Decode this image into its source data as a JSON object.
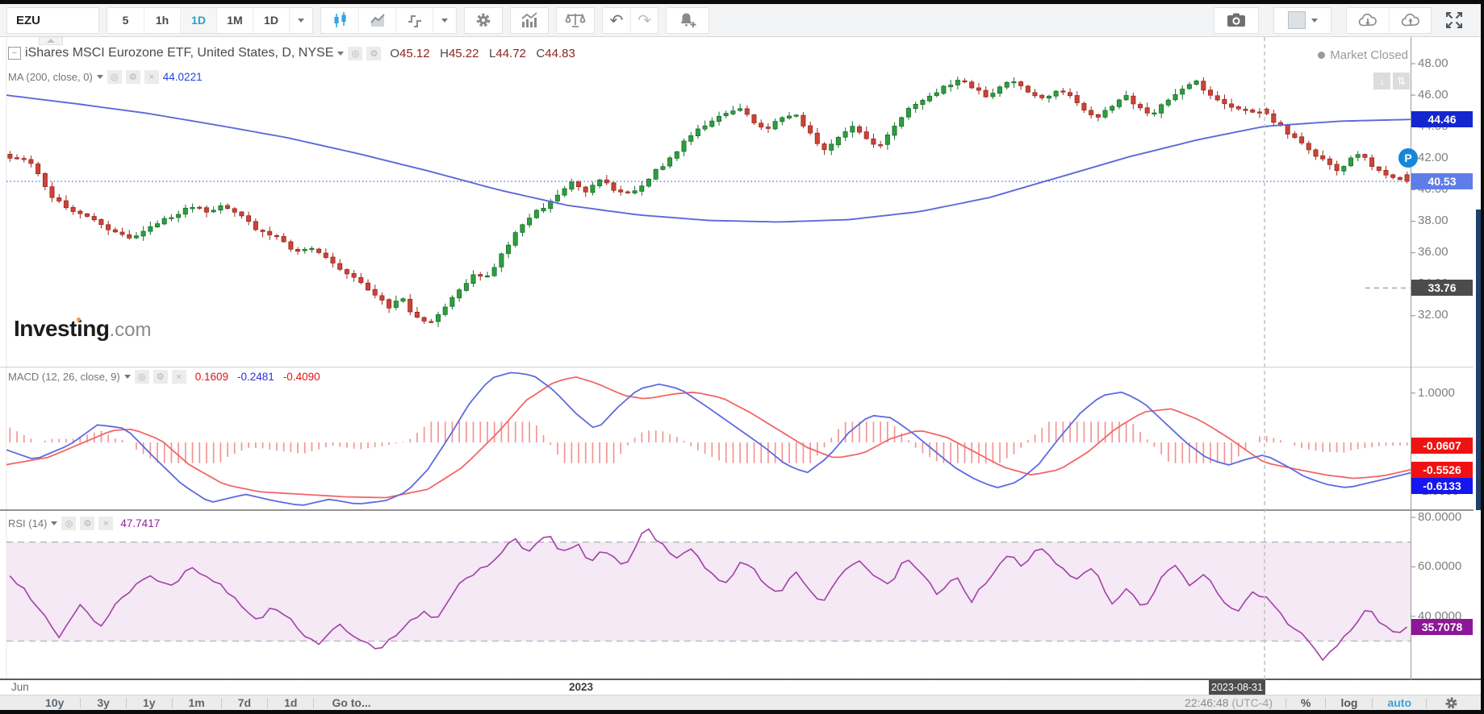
{
  "toolbar": {
    "symbol": "EZU",
    "intervals": [
      "5",
      "1h",
      "1D",
      "1M",
      "1D"
    ],
    "active_interval_index": 2,
    "left_icons": [
      "candlestick-chart",
      "line-chart",
      "step-chart",
      "chart-type-dropdown",
      "settings-gear",
      "indicators",
      "compare-scales",
      "undo",
      "redo",
      "alert-bell-add"
    ],
    "right_icons": [
      "camera-snapshot",
      "layout-square-dropdown",
      "cloud-download",
      "cloud-upload",
      "fullscreen"
    ]
  },
  "main_panel": {
    "title": "iShares MSCI Eurozone ETF, United States, D, NYSE",
    "ohlc": {
      "o_label": "O",
      "o": "45.12",
      "h_label": "H",
      "h": "45.22",
      "l_label": "L",
      "l": "44.72",
      "c_label": "C",
      "c": "44.83"
    },
    "ma_label": "MA (200, close, 0)",
    "ma_value": "44.0221",
    "market_status": "Market Closed",
    "wm1": "Invest",
    "wm2": "i",
    "wm3": "ng",
    "wm4": ".com",
    "p_marker": "P",
    "price_ticks": [
      "48.00",
      "46.00",
      "44.00",
      "42.00",
      "40.00",
      "38.00",
      "36.00",
      "34.00",
      "32.00"
    ],
    "chips": {
      "ma": "44.46",
      "last": "40.53",
      "gray": "33.76"
    }
  },
  "macd_panel": {
    "label": "MACD (12, 26, close, 9)",
    "values": [
      {
        "text": "0.1609",
        "color": "#e31212"
      },
      {
        "text": "-0.2481",
        "color": "#2d2de2"
      },
      {
        "text": "-0.4090",
        "color": "#e31212"
      }
    ],
    "ticks": [
      "1.0000",
      "-1.0000"
    ],
    "chips": {
      "hist": "-0.0607",
      "signal": "-0.5526",
      "macd": "-0.6133"
    }
  },
  "rsi_panel": {
    "label": "RSI (14)",
    "value": "47.7417",
    "ticks": [
      "80.0000",
      "60.0000",
      "40.0000"
    ],
    "chip": "35.7078"
  },
  "time_axis": {
    "month": "Jun",
    "year": "2023",
    "crosshair_date": "2023-08-31"
  },
  "bottom_bar": {
    "ranges": [
      "10y",
      "3y",
      "1y",
      "1m",
      "7d",
      "1d"
    ],
    "goto": "Go to...",
    "clock": "22:46:48",
    "timezone": "(UTC-4)",
    "percent": "%",
    "log": "log",
    "auto": "auto"
  },
  "colors": {
    "up_fill": "#2f9e41",
    "up_stroke": "#17702a",
    "down_fill": "#cc4437",
    "down_stroke": "#9a281e",
    "ma_line": "#5d6ad8",
    "macd_line": "#5f6ae0",
    "signal_line": "#f26666",
    "histogram": "#f39595",
    "rsi_line": "#a43fa8",
    "rsi_band": "#f4e9f5",
    "chip_ma_bg": "#1427cf",
    "chip_last_bg": "#5f7de8",
    "chip_gray_bg": "#4c4c4c",
    "chip_red_bg": "#ef1212",
    "chip_blue_bg": "#1616f0",
    "chip_purple_bg": "#8c1898",
    "accent_blue": "#2aa0c8",
    "last_price_line": "#3f51e5",
    "crosshair": "#bdbdbd"
  },
  "chart_data": {
    "type": "candlestick+indicators",
    "description": "EZU daily candles with MA(200) overlay, MACD(12,26,9) and RSI(14) subpanels; x spans ~Jun 2022 to Sep 2023",
    "price_axis_range": [
      31,
      49
    ],
    "macd_axis_range": [
      -1.3,
      1.5
    ],
    "rsi_axis_range": [
      15,
      85
    ],
    "rsi_band": [
      30,
      70
    ],
    "crosshair": {
      "t": 0.896,
      "date": "2023-08-31",
      "open": 45.12,
      "high": 45.22,
      "low": 44.72,
      "close": 44.83,
      "ma": 44.0221,
      "macd": -0.2481,
      "signal": -0.409,
      "histogram": 0.1609,
      "rsi": 47.7417
    },
    "last_values": {
      "close": 40.53,
      "ma": 44.46,
      "macd": -0.6133,
      "signal": -0.5526,
      "histogram": -0.0607,
      "rsi": 35.7078,
      "gray_level": 33.76
    },
    "price_keypoints": [
      [
        0,
        42.0
      ],
      [
        0.012,
        41.9
      ],
      [
        0.022,
        40.9
      ],
      [
        0.028,
        39.6
      ],
      [
        0.045,
        38.7
      ],
      [
        0.065,
        37.8
      ],
      [
        0.085,
        36.9
      ],
      [
        0.1,
        37.6
      ],
      [
        0.115,
        38.3
      ],
      [
        0.13,
        38.9
      ],
      [
        0.142,
        38.5
      ],
      [
        0.152,
        39.1
      ],
      [
        0.165,
        38.3
      ],
      [
        0.18,
        37.3
      ],
      [
        0.195,
        36.8
      ],
      [
        0.205,
        36.0
      ],
      [
        0.215,
        36.4
      ],
      [
        0.228,
        35.5
      ],
      [
        0.242,
        34.7
      ],
      [
        0.255,
        33.8
      ],
      [
        0.265,
        33.0
      ],
      [
        0.272,
        32.5
      ],
      [
        0.28,
        33.3
      ],
      [
        0.288,
        32.1
      ],
      [
        0.298,
        31.5
      ],
      [
        0.305,
        31.8
      ],
      [
        0.315,
        33.0
      ],
      [
        0.325,
        34.0
      ],
      [
        0.333,
        34.8
      ],
      [
        0.34,
        34.2
      ],
      [
        0.35,
        35.6
      ],
      [
        0.362,
        37.2
      ],
      [
        0.372,
        38.3
      ],
      [
        0.382,
        38.9
      ],
      [
        0.392,
        39.6
      ],
      [
        0.402,
        40.4
      ],
      [
        0.412,
        39.9
      ],
      [
        0.422,
        40.7
      ],
      [
        0.432,
        40.0
      ],
      [
        0.442,
        39.7
      ],
      [
        0.452,
        40.3
      ],
      [
        0.462,
        41.2
      ],
      [
        0.472,
        41.9
      ],
      [
        0.482,
        43.0
      ],
      [
        0.492,
        43.8
      ],
      [
        0.502,
        44.3
      ],
      [
        0.512,
        44.9
      ],
      [
        0.522,
        45.2
      ],
      [
        0.532,
        44.3
      ],
      [
        0.542,
        43.9
      ],
      [
        0.552,
        44.5
      ],
      [
        0.562,
        44.9
      ],
      [
        0.572,
        43.6
      ],
      [
        0.582,
        42.4
      ],
      [
        0.592,
        43.3
      ],
      [
        0.602,
        44.1
      ],
      [
        0.612,
        43.3
      ],
      [
        0.622,
        42.7
      ],
      [
        0.632,
        44.0
      ],
      [
        0.642,
        45.0
      ],
      [
        0.652,
        45.7
      ],
      [
        0.662,
        46.2
      ],
      [
        0.672,
        46.7
      ],
      [
        0.682,
        47.0
      ],
      [
        0.69,
        46.4
      ],
      [
        0.7,
        45.9
      ],
      [
        0.71,
        46.6
      ],
      [
        0.72,
        46.9
      ],
      [
        0.73,
        46.1
      ],
      [
        0.74,
        45.7
      ],
      [
        0.75,
        46.4
      ],
      [
        0.76,
        45.8
      ],
      [
        0.77,
        44.9
      ],
      [
        0.778,
        44.5
      ],
      [
        0.788,
        45.3
      ],
      [
        0.798,
        46.0
      ],
      [
        0.808,
        45.2
      ],
      [
        0.818,
        44.8
      ],
      [
        0.828,
        45.6
      ],
      [
        0.838,
        46.3
      ],
      [
        0.848,
        46.9
      ],
      [
        0.858,
        46.1
      ],
      [
        0.868,
        45.5
      ],
      [
        0.878,
        45.1
      ],
      [
        0.89,
        44.9
      ],
      [
        0.896,
        44.83
      ],
      [
        0.905,
        44.3
      ],
      [
        0.915,
        43.6
      ],
      [
        0.925,
        42.9
      ],
      [
        0.935,
        42.2
      ],
      [
        0.945,
        41.5
      ],
      [
        0.952,
        41.2
      ],
      [
        0.958,
        41.9
      ],
      [
        0.966,
        42.3
      ],
      [
        0.974,
        41.6
      ],
      [
        0.982,
        41.1
      ],
      [
        0.992,
        40.8
      ],
      [
        1,
        40.53
      ]
    ],
    "ma_keypoints": [
      [
        0,
        46.0
      ],
      [
        0.05,
        45.45
      ],
      [
        0.1,
        44.85
      ],
      [
        0.15,
        44.1
      ],
      [
        0.2,
        43.3
      ],
      [
        0.25,
        42.3
      ],
      [
        0.3,
        41.2
      ],
      [
        0.35,
        40.0
      ],
      [
        0.4,
        39.0
      ],
      [
        0.45,
        38.4
      ],
      [
        0.5,
        38.05
      ],
      [
        0.55,
        37.95
      ],
      [
        0.6,
        38.1
      ],
      [
        0.65,
        38.6
      ],
      [
        0.7,
        39.5
      ],
      [
        0.75,
        40.8
      ],
      [
        0.8,
        42.1
      ],
      [
        0.85,
        43.2
      ],
      [
        0.896,
        44.02
      ],
      [
        0.95,
        44.35
      ],
      [
        1,
        44.46
      ]
    ],
    "macd_keypoints": [
      [
        0,
        -0.15
      ],
      [
        0.02,
        -0.35
      ],
      [
        0.045,
        -0.05
      ],
      [
        0.065,
        0.36
      ],
      [
        0.085,
        0.28
      ],
      [
        0.105,
        -0.3
      ],
      [
        0.125,
        -0.85
      ],
      [
        0.145,
        -1.22
      ],
      [
        0.17,
        -1.05
      ],
      [
        0.19,
        -1.18
      ],
      [
        0.21,
        -1.28
      ],
      [
        0.23,
        -1.15
      ],
      [
        0.25,
        -1.25
      ],
      [
        0.27,
        -1.18
      ],
      [
        0.285,
        -1.0
      ],
      [
        0.3,
        -0.55
      ],
      [
        0.315,
        0.1
      ],
      [
        0.33,
        0.8
      ],
      [
        0.345,
        1.3
      ],
      [
        0.36,
        1.42
      ],
      [
        0.375,
        1.36
      ],
      [
        0.39,
        1.05
      ],
      [
        0.405,
        0.6
      ],
      [
        0.42,
        0.25
      ],
      [
        0.435,
        0.7
      ],
      [
        0.45,
        1.08
      ],
      [
        0.465,
        1.18
      ],
      [
        0.48,
        1.08
      ],
      [
        0.5,
        0.7
      ],
      [
        0.52,
        0.3
      ],
      [
        0.54,
        -0.1
      ],
      [
        0.555,
        -0.45
      ],
      [
        0.57,
        -0.62
      ],
      [
        0.585,
        -0.3
      ],
      [
        0.6,
        0.2
      ],
      [
        0.615,
        0.55
      ],
      [
        0.63,
        0.5
      ],
      [
        0.645,
        0.2
      ],
      [
        0.66,
        -0.15
      ],
      [
        0.675,
        -0.5
      ],
      [
        0.69,
        -0.75
      ],
      [
        0.705,
        -0.92
      ],
      [
        0.72,
        -0.8
      ],
      [
        0.735,
        -0.45
      ],
      [
        0.75,
        0.1
      ],
      [
        0.765,
        0.6
      ],
      [
        0.78,
        0.95
      ],
      [
        0.795,
        1.02
      ],
      [
        0.81,
        0.8
      ],
      [
        0.825,
        0.4
      ],
      [
        0.84,
        0.0
      ],
      [
        0.855,
        -0.32
      ],
      [
        0.87,
        -0.46
      ],
      [
        0.882,
        -0.35
      ],
      [
        0.896,
        -0.2481
      ],
      [
        0.91,
        -0.45
      ],
      [
        0.925,
        -0.7
      ],
      [
        0.94,
        -0.85
      ],
      [
        0.955,
        -0.92
      ],
      [
        0.97,
        -0.82
      ],
      [
        0.985,
        -0.72
      ],
      [
        1,
        -0.6133
      ]
    ],
    "signal_keypoints": [
      [
        0,
        -0.45
      ],
      [
        0.03,
        -0.3
      ],
      [
        0.055,
        0.0
      ],
      [
        0.075,
        0.24
      ],
      [
        0.09,
        0.27
      ],
      [
        0.11,
        0.05
      ],
      [
        0.13,
        -0.45
      ],
      [
        0.155,
        -0.85
      ],
      [
        0.18,
        -1.0
      ],
      [
        0.21,
        -1.05
      ],
      [
        0.24,
        -1.1
      ],
      [
        0.27,
        -1.12
      ],
      [
        0.3,
        -0.95
      ],
      [
        0.325,
        -0.5
      ],
      [
        0.35,
        0.2
      ],
      [
        0.37,
        0.85
      ],
      [
        0.39,
        1.22
      ],
      [
        0.405,
        1.33
      ],
      [
        0.42,
        1.2
      ],
      [
        0.44,
        0.95
      ],
      [
        0.455,
        0.88
      ],
      [
        0.475,
        0.98
      ],
      [
        0.49,
        1.02
      ],
      [
        0.51,
        0.9
      ],
      [
        0.53,
        0.6
      ],
      [
        0.55,
        0.25
      ],
      [
        0.57,
        -0.1
      ],
      [
        0.59,
        -0.32
      ],
      [
        0.61,
        -0.22
      ],
      [
        0.63,
        0.08
      ],
      [
        0.65,
        0.25
      ],
      [
        0.67,
        0.1
      ],
      [
        0.69,
        -0.2
      ],
      [
        0.71,
        -0.5
      ],
      [
        0.73,
        -0.66
      ],
      [
        0.75,
        -0.55
      ],
      [
        0.77,
        -0.2
      ],
      [
        0.79,
        0.28
      ],
      [
        0.81,
        0.62
      ],
      [
        0.83,
        0.68
      ],
      [
        0.85,
        0.45
      ],
      [
        0.87,
        0.1
      ],
      [
        0.885,
        -0.2
      ],
      [
        0.896,
        -0.409
      ],
      [
        0.92,
        -0.55
      ],
      [
        0.94,
        -0.66
      ],
      [
        0.96,
        -0.73
      ],
      [
        0.98,
        -0.68
      ],
      [
        1,
        -0.5526
      ]
    ],
    "rsi_keypoints": [
      [
        0,
        57
      ],
      [
        0.02,
        44
      ],
      [
        0.035,
        31
      ],
      [
        0.05,
        44
      ],
      [
        0.065,
        36
      ],
      [
        0.08,
        48
      ],
      [
        0.1,
        57
      ],
      [
        0.115,
        52
      ],
      [
        0.13,
        60
      ],
      [
        0.145,
        55
      ],
      [
        0.16,
        48
      ],
      [
        0.175,
        38
      ],
      [
        0.19,
        44
      ],
      [
        0.205,
        36
      ],
      [
        0.22,
        28
      ],
      [
        0.235,
        37
      ],
      [
        0.25,
        30
      ],
      [
        0.265,
        26
      ],
      [
        0.28,
        35
      ],
      [
        0.295,
        42
      ],
      [
        0.305,
        38
      ],
      [
        0.32,
        52
      ],
      [
        0.335,
        58
      ],
      [
        0.35,
        65
      ],
      [
        0.36,
        72
      ],
      [
        0.37,
        66
      ],
      [
        0.385,
        73
      ],
      [
        0.395,
        65
      ],
      [
        0.405,
        70
      ],
      [
        0.415,
        62
      ],
      [
        0.425,
        67
      ],
      [
        0.44,
        59
      ],
      [
        0.455,
        76
      ],
      [
        0.465,
        70
      ],
      [
        0.475,
        63
      ],
      [
        0.488,
        67
      ],
      [
        0.5,
        58
      ],
      [
        0.512,
        53
      ],
      [
        0.525,
        63
      ],
      [
        0.538,
        55
      ],
      [
        0.55,
        49
      ],
      [
        0.562,
        58
      ],
      [
        0.572,
        50
      ],
      [
        0.582,
        45
      ],
      [
        0.595,
        57
      ],
      [
        0.607,
        63
      ],
      [
        0.617,
        57
      ],
      [
        0.63,
        52
      ],
      [
        0.64,
        64
      ],
      [
        0.652,
        58
      ],
      [
        0.665,
        48
      ],
      [
        0.677,
        57
      ],
      [
        0.688,
        46
      ],
      [
        0.7,
        55
      ],
      [
        0.715,
        65
      ],
      [
        0.725,
        60
      ],
      [
        0.737,
        68
      ],
      [
        0.75,
        61
      ],
      [
        0.762,
        55
      ],
      [
        0.775,
        60
      ],
      [
        0.788,
        45
      ],
      [
        0.8,
        51
      ],
      [
        0.812,
        43
      ],
      [
        0.825,
        56
      ],
      [
        0.835,
        61
      ],
      [
        0.845,
        52
      ],
      [
        0.855,
        58
      ],
      [
        0.868,
        47
      ],
      [
        0.878,
        41
      ],
      [
        0.888,
        50
      ],
      [
        0.896,
        47.74
      ],
      [
        0.906,
        43
      ],
      [
        0.916,
        36
      ],
      [
        0.928,
        31
      ],
      [
        0.94,
        23
      ],
      [
        0.95,
        28
      ],
      [
        0.962,
        36
      ],
      [
        0.972,
        44
      ],
      [
        0.982,
        37
      ],
      [
        0.99,
        33
      ],
      [
        1,
        35.71
      ]
    ]
  }
}
